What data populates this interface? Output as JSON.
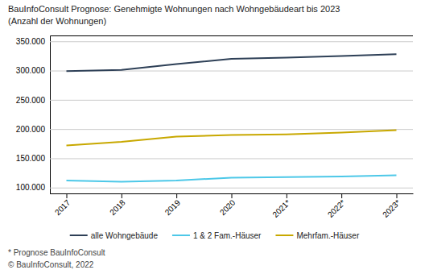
{
  "chart_data": {
    "type": "line",
    "title": "BauInfoConsult Prognose: Genehmigte Wohnungen nach Wohngebäudeart bis 2023",
    "subtitle": "(Anzahl der Wohnungen)",
    "categories": [
      "2017",
      "2018",
      "2019",
      "2020",
      "2021*",
      "2022*",
      "2023*"
    ],
    "series": [
      {
        "name": "alle Wohngebäude",
        "color": "#2E4057",
        "values": [
          299000,
          301000,
          311000,
          320000,
          322000,
          325000,
          328000
        ]
      },
      {
        "name": "1 & 2 Fam.-Häuser",
        "color": "#4DC8E8",
        "values": [
          112000,
          110000,
          112000,
          117000,
          118000,
          119000,
          121000
        ]
      },
      {
        "name": "Mehrfam.-Häuser",
        "color": "#C8A800",
        "values": [
          172000,
          178000,
          187000,
          190000,
          191000,
          194000,
          198000
        ]
      }
    ],
    "ylim": [
      90000,
      360000
    ],
    "yticks": [
      {
        "value": 100000,
        "label": "100.000"
      },
      {
        "value": 150000,
        "label": "150.000"
      },
      {
        "value": 200000,
        "label": "200.000"
      },
      {
        "value": 250000,
        "label": "250.000"
      },
      {
        "value": 300000,
        "label": "300.000"
      },
      {
        "value": 350000,
        "label": "350.000"
      }
    ],
    "grid": true,
    "legend": "bottom",
    "annotations": [
      "* Prognose BauInfoConsult",
      "© BauInfoConsult, 2022"
    ]
  }
}
